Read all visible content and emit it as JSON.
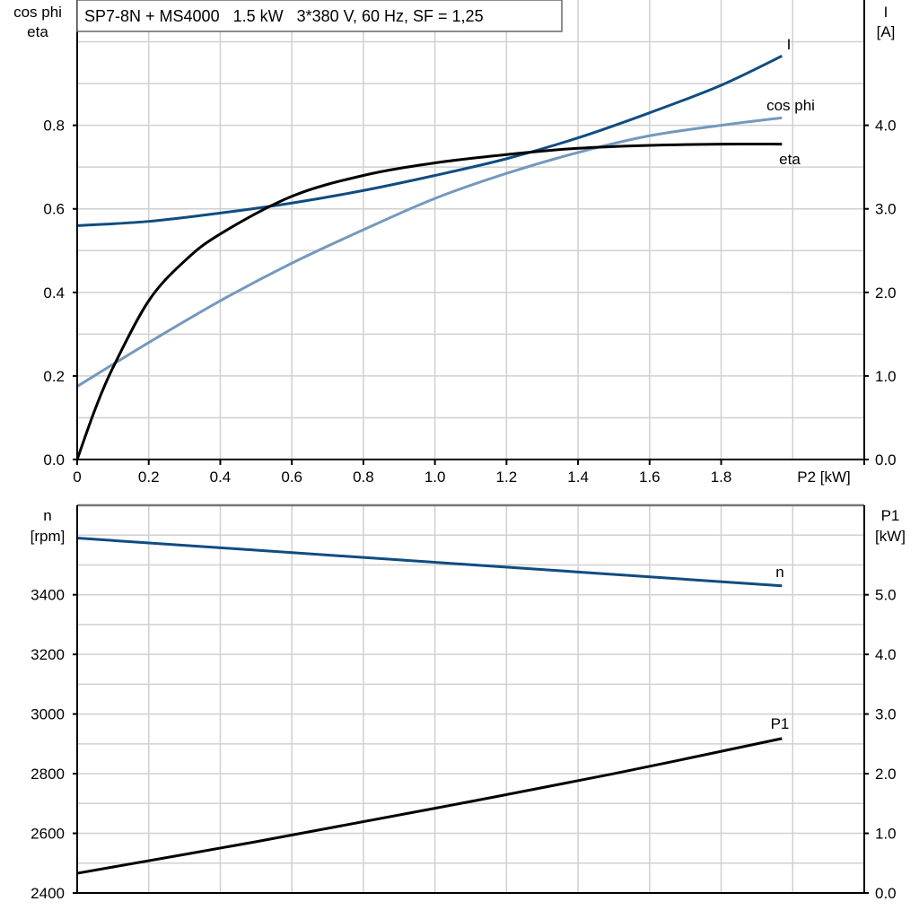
{
  "chart_data": [
    {
      "type": "line",
      "title": "SP7-8N + MS4000   1.5 kW   3*380 V, 60 Hz, SF = 1,25",
      "xlabel": "P2 [kW]",
      "ylabel_left": [
        "cos phi",
        "eta"
      ],
      "ylabel_right": [
        "I",
        "[A]"
      ],
      "xlim": [
        0,
        2.2
      ],
      "ylim_left": [
        0,
        1.1
      ],
      "ylim_right": [
        0,
        5.5
      ],
      "x_ticks": [
        "0",
        "0.2",
        "0.4",
        "0.6",
        "0.8",
        "1.0",
        "1.2",
        "1.4",
        "1.6",
        "1.8"
      ],
      "y_ticks_left": [
        "0.0",
        "0.2",
        "0.4",
        "0.6",
        "0.8"
      ],
      "y_ticks_right": [
        "0.0",
        "1.0",
        "2.0",
        "3.0",
        "4.0"
      ],
      "grid": true,
      "series": [
        {
          "name": "I",
          "axis": "right",
          "color": "#0f4c81",
          "x": [
            0,
            0.2,
            0.4,
            0.6,
            0.8,
            1.0,
            1.2,
            1.4,
            1.6,
            1.8,
            1.97
          ],
          "y": [
            2.8,
            2.85,
            2.95,
            3.07,
            3.22,
            3.4,
            3.6,
            3.85,
            4.15,
            4.48,
            4.83
          ]
        },
        {
          "name": "cos phi",
          "axis": "left",
          "color": "#7499bd",
          "x": [
            0,
            0.2,
            0.4,
            0.6,
            0.8,
            1.0,
            1.2,
            1.4,
            1.6,
            1.8,
            1.97
          ],
          "y": [
            0.175,
            0.28,
            0.38,
            0.47,
            0.55,
            0.625,
            0.685,
            0.735,
            0.775,
            0.8,
            0.818
          ]
        },
        {
          "name": "eta",
          "axis": "left",
          "color": "#000000",
          "x": [
            0,
            0.05,
            0.1,
            0.2,
            0.3,
            0.4,
            0.6,
            0.8,
            1.0,
            1.2,
            1.4,
            1.6,
            1.8,
            1.97
          ],
          "y": [
            0,
            0.12,
            0.22,
            0.38,
            0.475,
            0.54,
            0.63,
            0.68,
            0.71,
            0.73,
            0.745,
            0.752,
            0.755,
            0.755
          ]
        }
      ]
    },
    {
      "type": "line",
      "ylabel_left": [
        "n",
        "[rpm]"
      ],
      "ylabel_right": [
        "P1",
        "[kW]"
      ],
      "xlim": [
        0,
        2.2
      ],
      "ylim_left": [
        2400,
        3700
      ],
      "ylim_right": [
        0,
        6.5
      ],
      "y_ticks_left": [
        "2400",
        "2600",
        "2800",
        "3000",
        "3200",
        "3400"
      ],
      "y_ticks_right": [
        "0.0",
        "1.0",
        "2.0",
        "3.0",
        "4.0",
        "5.0"
      ],
      "grid": true,
      "series": [
        {
          "name": "n",
          "axis": "left",
          "color": "#0f4c81",
          "x": [
            0,
            1.97
          ],
          "y": [
            3590,
            3430
          ]
        },
        {
          "name": "P1",
          "axis": "right",
          "color": "#000000",
          "x": [
            0,
            0.5,
            1.0,
            1.5,
            1.97
          ],
          "y": [
            0.33,
            0.86,
            1.42,
            2.0,
            2.59
          ]
        }
      ]
    }
  ]
}
